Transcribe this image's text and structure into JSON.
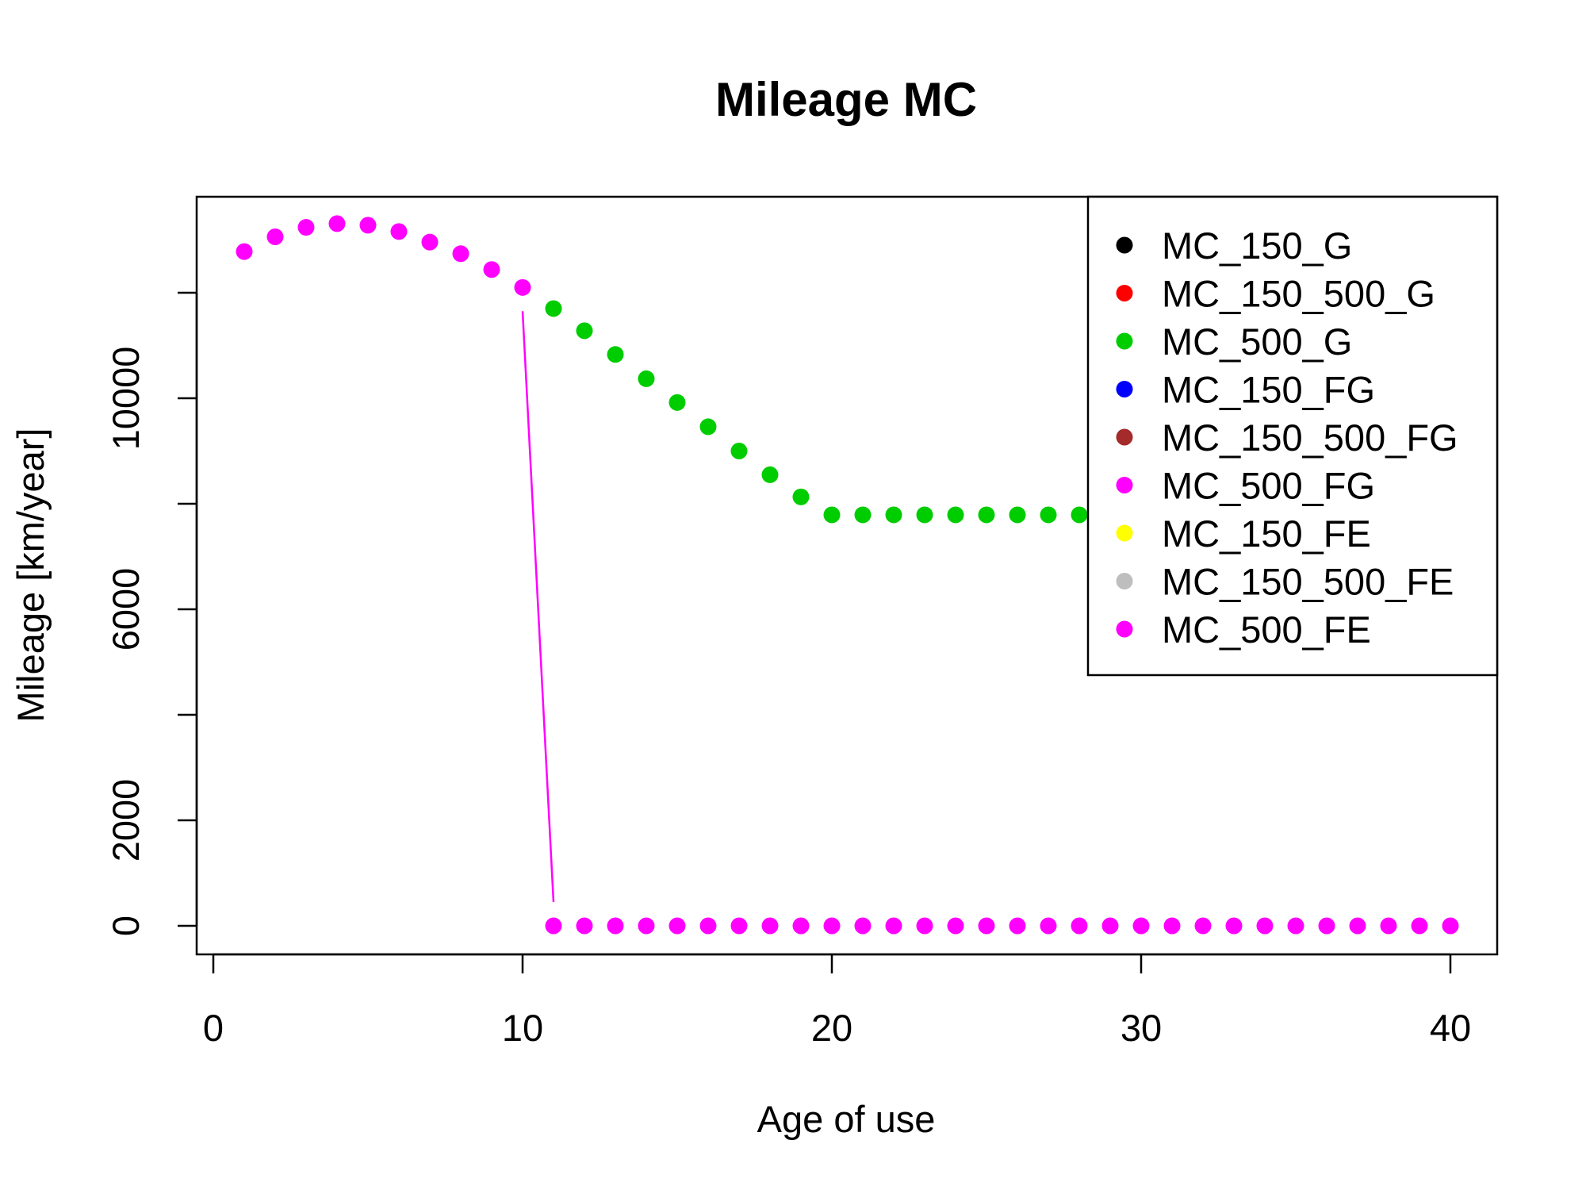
{
  "chart_data": {
    "type": "scatter",
    "title": "Mileage MC",
    "xlabel": "Age of use",
    "ylabel": "Mileage [km/year]",
    "xlim": [
      0,
      40
    ],
    "ylim": [
      0,
      13000
    ],
    "xticks": [
      0,
      10,
      20,
      30,
      40
    ],
    "yticks": [
      0,
      2000,
      4000,
      6000,
      8000,
      10000,
      12000
    ],
    "ytick_labels": [
      "0",
      "2000",
      "",
      "6000",
      "",
      "10000",
      ""
    ],
    "xtick_labels": [
      "0",
      "10",
      "20",
      "30",
      "40"
    ],
    "grid": false,
    "legend_position": "top-right",
    "legend": [
      {
        "name": "MC_150_G",
        "color": "#000000"
      },
      {
        "name": "MC_150_500_G",
        "color": "#ff0000"
      },
      {
        "name": "MC_500_G",
        "color": "#00cd00"
      },
      {
        "name": "MC_150_FG",
        "color": "#0000ff"
      },
      {
        "name": "MC_150_500_FG",
        "color": "#a52a2a"
      },
      {
        "name": "MC_500_FG",
        "color": "#ff00ff"
      },
      {
        "name": "MC_150_FE",
        "color": "#ffff00"
      },
      {
        "name": "MC_150_500_FE",
        "color": "#bebebe"
      },
      {
        "name": "MC_500_FE",
        "color": "#ff00ff"
      }
    ],
    "series": [
      {
        "name": "MC_500_G",
        "color": "#00cd00",
        "x": [
          11,
          12,
          13,
          14,
          15,
          16,
          17,
          18,
          19,
          20,
          21,
          22,
          23,
          24,
          25,
          26,
          27,
          28
        ],
        "y": [
          11700,
          11280,
          10830,
          10370,
          9920,
          9460,
          9000,
          8550,
          8130,
          7790,
          7790,
          7790,
          7790,
          7790,
          7790,
          7790,
          7790,
          7790
        ]
      },
      {
        "name": "MC_500_FG",
        "color": "#ff00ff",
        "x": [
          1,
          2,
          3,
          4,
          5,
          6,
          7,
          8,
          9,
          10,
          11,
          12,
          13,
          14,
          15,
          16,
          17,
          18,
          19,
          20,
          21,
          22,
          23,
          24,
          25,
          26,
          27,
          28,
          29,
          30,
          31,
          32,
          33,
          34,
          35,
          36,
          37,
          38,
          39,
          40
        ],
        "y": [
          12780,
          13060,
          13240,
          13310,
          13280,
          13160,
          12960,
          12740,
          12440,
          12100,
          0,
          0,
          0,
          0,
          0,
          0,
          0,
          0,
          0,
          0,
          0,
          0,
          0,
          0,
          0,
          0,
          0,
          0,
          0,
          0,
          0,
          0,
          0,
          0,
          0,
          0,
          0,
          0,
          0,
          0
        ]
      }
    ],
    "lines": [
      {
        "color": "#ff00ff",
        "x": [
          10,
          11
        ],
        "y": [
          11650,
          450
        ]
      }
    ]
  }
}
